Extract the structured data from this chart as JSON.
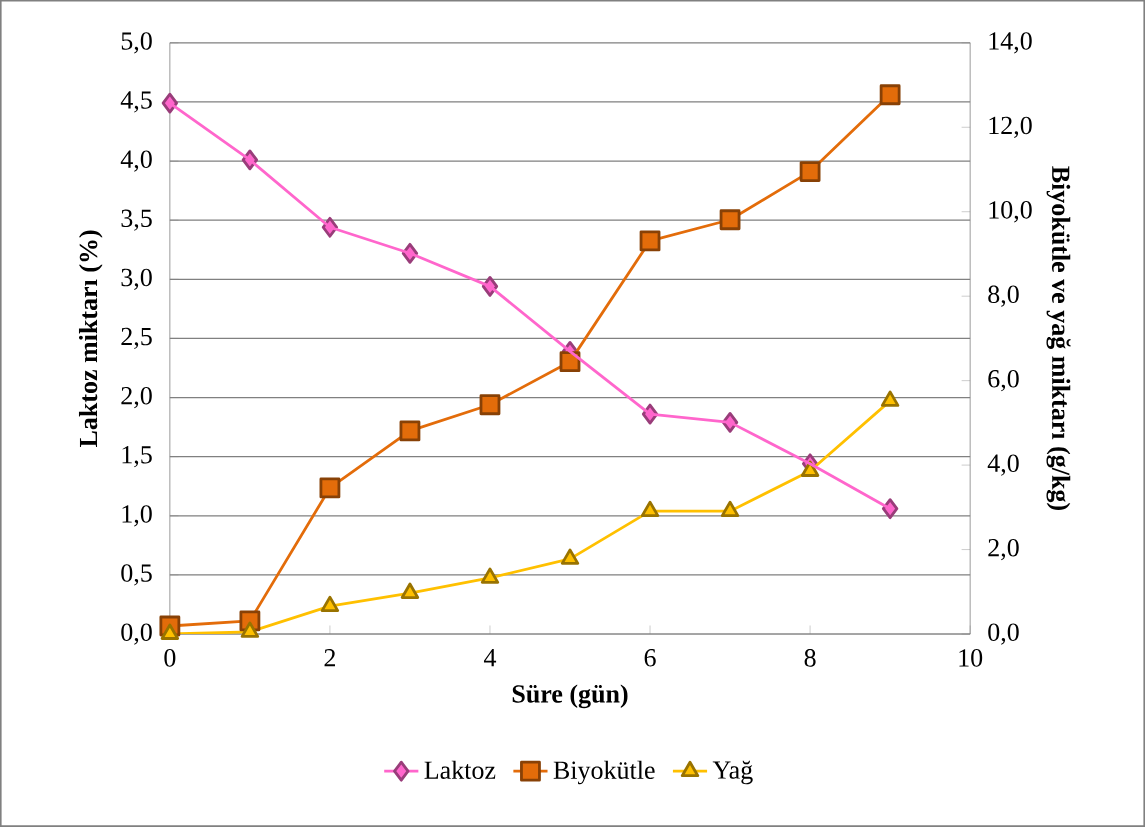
{
  "chart_data": {
    "type": "line",
    "xlabel": "Süre (gün)",
    "ylabel": "Laktoz miktarı (%)",
    "y2label": "Biyokütle ve yağ miktarı (g/kg)",
    "x": [
      0,
      1,
      2,
      3,
      4,
      5,
      6,
      7,
      8,
      9
    ],
    "xlim": [
      0,
      10
    ],
    "xticks": [
      0,
      2,
      4,
      6,
      8,
      10
    ],
    "ylim": [
      0,
      5
    ],
    "yticks": [
      {
        "value": 0,
        "label": "0,0"
      },
      {
        "value": 0.5,
        "label": "0,5"
      },
      {
        "value": 1,
        "label": "1,0"
      },
      {
        "value": 1.5,
        "label": "1,5"
      },
      {
        "value": 2,
        "label": "2,0"
      },
      {
        "value": 2.5,
        "label": "2,5"
      },
      {
        "value": 3,
        "label": "3,0"
      },
      {
        "value": 3.5,
        "label": "3,5"
      },
      {
        "value": 4,
        "label": "4,0"
      },
      {
        "value": 4.5,
        "label": "4,5"
      },
      {
        "value": 5,
        "label": "5,0"
      }
    ],
    "y2lim": [
      0,
      14
    ],
    "y2ticks": [
      {
        "value": 0,
        "label": "0,0"
      },
      {
        "value": 2,
        "label": "2,0"
      },
      {
        "value": 4,
        "label": "4,0"
      },
      {
        "value": 6,
        "label": "6,0"
      },
      {
        "value": 8,
        "label": "8,0"
      },
      {
        "value": 10,
        "label": "10,0"
      },
      {
        "value": 12,
        "label": "12,0"
      },
      {
        "value": 14,
        "label": "14,0"
      }
    ],
    "grid": "y",
    "legend": "bottom",
    "series": [
      {
        "name": "Laktoz",
        "color": "#ff66cc",
        "marker": "diamond",
        "values": [
          4.49,
          4.01,
          3.44,
          3.22,
          2.94,
          2.39,
          1.86,
          1.79,
          1.44,
          1.06
        ]
      },
      {
        "name": "Biyokütle",
        "color": "#e36c0a",
        "marker": "square",
        "axis": "y2",
        "values": [
          0.19,
          0.31,
          3.46,
          4.81,
          5.43,
          6.45,
          9.31,
          9.81,
          10.95,
          12.77
        ]
      },
      {
        "name": "Yağ",
        "color": "#ffc000",
        "marker": "triangle",
        "axis": "y2",
        "values": [
          0.0,
          0.05,
          0.66,
          0.97,
          1.33,
          1.78,
          2.91,
          2.91,
          3.86,
          5.52
        ]
      }
    ]
  }
}
